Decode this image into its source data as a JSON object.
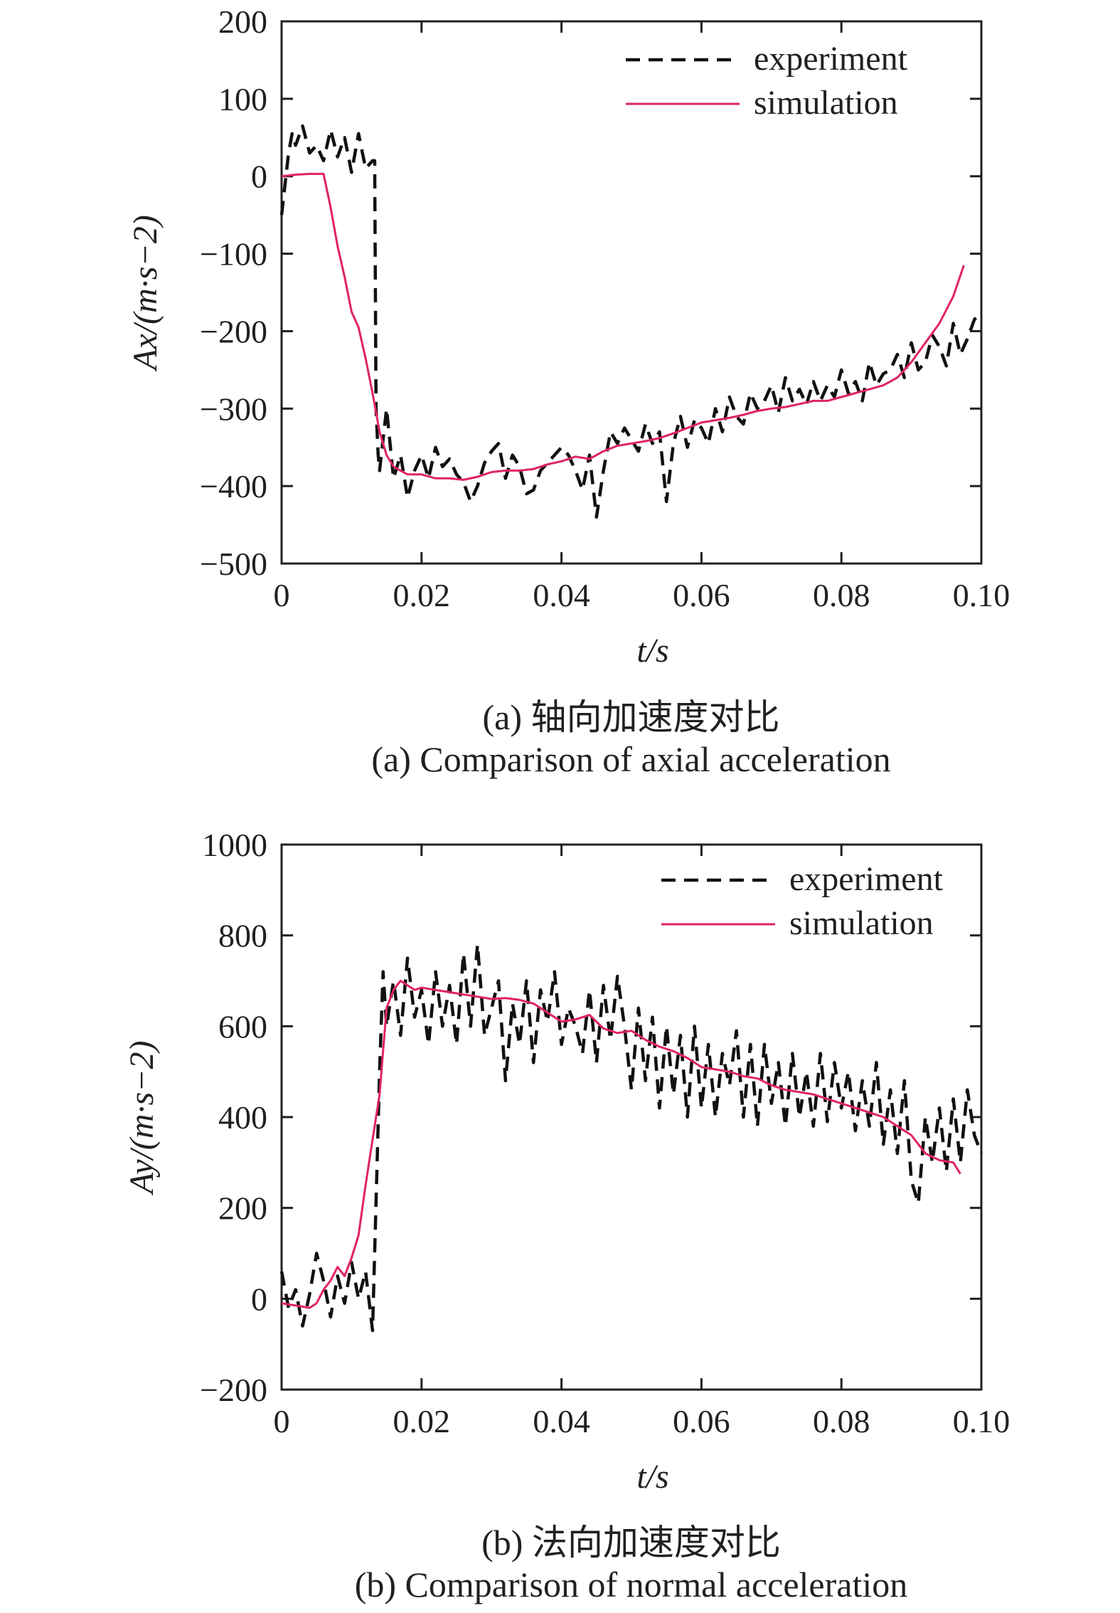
{
  "colors": {
    "experiment": "#111111",
    "simulation": "#e0245e",
    "axis": "#231f20"
  },
  "captions": {
    "a_cn": "(a) 轴向加速度对比",
    "a_en": "(a) Comparison of axial acceleration",
    "b_cn": "(b) 法向加速度对比",
    "b_en": "(b) Comparison of normal acceleration"
  },
  "chart_data": [
    {
      "type": "line",
      "xlabel": "t/s",
      "ylabel": "Ax/(m·s−2)",
      "xlim": [
        0,
        0.1
      ],
      "ylim": [
        -500,
        200
      ],
      "x_ticks": [
        "0",
        "0.02",
        "0.04",
        "0.06",
        "0.08",
        "0.10"
      ],
      "y_ticks": [
        "200",
        "100",
        "0",
        "−100",
        "−200",
        "−300",
        "−400",
        "−500"
      ],
      "legend_position": "top-right",
      "grid": false,
      "series": [
        {
          "name": "experiment",
          "style": "dashed",
          "x": [
            0,
            0.0005,
            0.001,
            0.0015,
            0.002,
            0.003,
            0.004,
            0.005,
            0.006,
            0.007,
            0.008,
            0.009,
            0.01,
            0.011,
            0.012,
            0.013,
            0.0133,
            0.0135,
            0.0138,
            0.014,
            0.015,
            0.016,
            0.017,
            0.018,
            0.019,
            0.02,
            0.021,
            0.022,
            0.023,
            0.024,
            0.025,
            0.026,
            0.027,
            0.028,
            0.029,
            0.03,
            0.031,
            0.032,
            0.033,
            0.034,
            0.035,
            0.036,
            0.037,
            0.038,
            0.039,
            0.04,
            0.041,
            0.042,
            0.043,
            0.044,
            0.045,
            0.046,
            0.047,
            0.048,
            0.049,
            0.05,
            0.051,
            0.052,
            0.053,
            0.054,
            0.055,
            0.056,
            0.057,
            0.058,
            0.059,
            0.06,
            0.061,
            0.062,
            0.063,
            0.064,
            0.065,
            0.066,
            0.067,
            0.068,
            0.069,
            0.07,
            0.071,
            0.072,
            0.073,
            0.074,
            0.075,
            0.076,
            0.077,
            0.078,
            0.079,
            0.08,
            0.081,
            0.082,
            0.083,
            0.084,
            0.085,
            0.086,
            0.087,
            0.088,
            0.089,
            0.09,
            0.091,
            0.092,
            0.093,
            0.094,
            0.095,
            0.096,
            0.097,
            0.098,
            0.099,
            0.1
          ],
          "y": [
            -50,
            -10,
            30,
            55,
            40,
            65,
            30,
            40,
            20,
            60,
            25,
            50,
            5,
            55,
            10,
            20,
            20,
            -300,
            -360,
            -380,
            -300,
            -390,
            -360,
            -415,
            -380,
            -360,
            -390,
            -350,
            -375,
            -365,
            -385,
            -395,
            -420,
            -400,
            -370,
            -355,
            -345,
            -390,
            -360,
            -375,
            -410,
            -405,
            -380,
            -370,
            -360,
            -350,
            -360,
            -380,
            -405,
            -360,
            -440,
            -380,
            -330,
            -345,
            -325,
            -340,
            -355,
            -320,
            -345,
            -330,
            -420,
            -345,
            -310,
            -350,
            -315,
            -325,
            -345,
            -300,
            -330,
            -285,
            -310,
            -320,
            -280,
            -300,
            -290,
            -270,
            -305,
            -260,
            -290,
            -275,
            -295,
            -265,
            -290,
            -270,
            -285,
            -250,
            -280,
            -265,
            -290,
            -240,
            -270,
            -255,
            -250,
            -230,
            -260,
            -215,
            -250,
            -240,
            -205,
            -220,
            -245,
            -190,
            -230,
            -210,
            -185,
            -175
          ]
        },
        {
          "name": "simulation",
          "style": "solid",
          "x": [
            0,
            0.002,
            0.004,
            0.006,
            0.007,
            0.008,
            0.009,
            0.01,
            0.011,
            0.012,
            0.013,
            0.014,
            0.015,
            0.016,
            0.017,
            0.018,
            0.02,
            0.022,
            0.024,
            0.026,
            0.028,
            0.03,
            0.032,
            0.034,
            0.036,
            0.038,
            0.04,
            0.042,
            0.044,
            0.046,
            0.048,
            0.05,
            0.052,
            0.054,
            0.056,
            0.058,
            0.06,
            0.062,
            0.064,
            0.066,
            0.068,
            0.07,
            0.072,
            0.074,
            0.076,
            0.078,
            0.08,
            0.082,
            0.084,
            0.086,
            0.088,
            0.09,
            0.092,
            0.094,
            0.096,
            0.0975
          ],
          "y": [
            0,
            2,
            3,
            3,
            -40,
            -90,
            -130,
            -175,
            -195,
            -235,
            -280,
            -330,
            -360,
            -375,
            -380,
            -385,
            -385,
            -390,
            -390,
            -392,
            -388,
            -382,
            -380,
            -380,
            -378,
            -372,
            -368,
            -362,
            -365,
            -355,
            -348,
            -345,
            -342,
            -338,
            -332,
            -325,
            -318,
            -315,
            -312,
            -308,
            -303,
            -300,
            -298,
            -294,
            -290,
            -290,
            -285,
            -280,
            -275,
            -270,
            -260,
            -240,
            -215,
            -190,
            -155,
            -115
          ]
        }
      ]
    },
    {
      "type": "line",
      "xlabel": "t/s",
      "ylabel": "Ay/(m·s−2)",
      "xlim": [
        0,
        0.1
      ],
      "ylim": [
        -200,
        1000
      ],
      "x_ticks": [
        "0",
        "0.02",
        "0.04",
        "0.06",
        "0.08",
        "0.10"
      ],
      "y_ticks": [
        "1000",
        "800",
        "600",
        "400",
        "200",
        "0",
        "−200"
      ],
      "legend_position": "top-right",
      "grid": false,
      "series": [
        {
          "name": "experiment",
          "style": "dashed",
          "x": [
            0,
            0.001,
            0.002,
            0.003,
            0.004,
            0.005,
            0.006,
            0.007,
            0.008,
            0.009,
            0.01,
            0.011,
            0.012,
            0.013,
            0.014,
            0.0145,
            0.015,
            0.016,
            0.017,
            0.018,
            0.019,
            0.02,
            0.021,
            0.022,
            0.023,
            0.024,
            0.025,
            0.026,
            0.027,
            0.028,
            0.029,
            0.03,
            0.031,
            0.032,
            0.033,
            0.034,
            0.035,
            0.036,
            0.037,
            0.038,
            0.039,
            0.04,
            0.041,
            0.042,
            0.043,
            0.044,
            0.045,
            0.046,
            0.047,
            0.048,
            0.049,
            0.05,
            0.051,
            0.052,
            0.053,
            0.054,
            0.055,
            0.056,
            0.057,
            0.058,
            0.059,
            0.06,
            0.061,
            0.062,
            0.063,
            0.064,
            0.065,
            0.066,
            0.067,
            0.068,
            0.069,
            0.07,
            0.071,
            0.072,
            0.073,
            0.074,
            0.075,
            0.076,
            0.077,
            0.078,
            0.079,
            0.08,
            0.081,
            0.082,
            0.083,
            0.084,
            0.085,
            0.086,
            0.087,
            0.088,
            0.089,
            0.09,
            0.091,
            0.092,
            0.093,
            0.094,
            0.095,
            0.096,
            0.097,
            0.098,
            0.099,
            0.1
          ],
          "y": [
            60,
            -20,
            20,
            -60,
            10,
            100,
            40,
            -40,
            50,
            -10,
            80,
            0,
            60,
            -70,
            500,
            720,
            600,
            700,
            580,
            750,
            620,
            680,
            560,
            720,
            600,
            690,
            560,
            760,
            600,
            780,
            580,
            640,
            700,
            480,
            650,
            560,
            700,
            520,
            680,
            610,
            720,
            560,
            640,
            600,
            540,
            680,
            520,
            690,
            570,
            710,
            600,
            460,
            640,
            480,
            620,
            420,
            600,
            450,
            580,
            400,
            600,
            420,
            560,
            400,
            540,
            470,
            590,
            400,
            560,
            380,
            560,
            430,
            520,
            380,
            540,
            400,
            500,
            380,
            540,
            390,
            520,
            420,
            500,
            370,
            480,
            380,
            520,
            340,
            460,
            320,
            480,
            260,
            210,
            400,
            300,
            420,
            280,
            440,
            300,
            460,
            360,
            320
          ]
        },
        {
          "name": "simulation",
          "style": "solid",
          "x": [
            0,
            0.002,
            0.004,
            0.005,
            0.006,
            0.007,
            0.008,
            0.009,
            0.01,
            0.011,
            0.012,
            0.013,
            0.014,
            0.015,
            0.016,
            0.017,
            0.018,
            0.019,
            0.02,
            0.022,
            0.024,
            0.026,
            0.028,
            0.03,
            0.032,
            0.034,
            0.036,
            0.038,
            0.04,
            0.042,
            0.044,
            0.046,
            0.048,
            0.05,
            0.052,
            0.054,
            0.056,
            0.058,
            0.06,
            0.062,
            0.064,
            0.066,
            0.068,
            0.07,
            0.072,
            0.074,
            0.076,
            0.078,
            0.08,
            0.082,
            0.084,
            0.086,
            0.088,
            0.09,
            0.092,
            0.094,
            0.096,
            0.097
          ],
          "y": [
            -10,
            -15,
            -20,
            -10,
            20,
            40,
            70,
            50,
            90,
            140,
            250,
            350,
            450,
            640,
            680,
            700,
            690,
            680,
            685,
            680,
            675,
            670,
            665,
            660,
            662,
            658,
            650,
            630,
            610,
            615,
            625,
            595,
            585,
            590,
            570,
            555,
            545,
            530,
            510,
            505,
            500,
            490,
            485,
            470,
            460,
            455,
            450,
            440,
            430,
            420,
            410,
            400,
            380,
            360,
            320,
            305,
            300,
            275
          ]
        }
      ]
    }
  ]
}
